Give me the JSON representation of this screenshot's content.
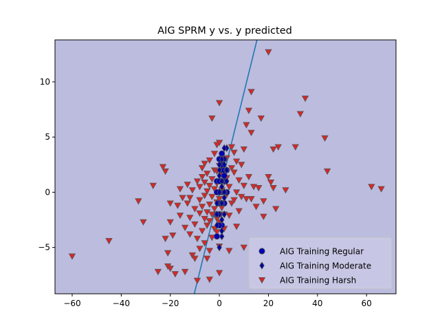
{
  "chart_data": {
    "type": "scatter",
    "title": "AIG SPRM y vs. y predicted",
    "xlabel": "",
    "ylabel": "",
    "xlim": [
      -67,
      72
    ],
    "ylim": [
      -9.2,
      13.8
    ],
    "xticks": [
      -60,
      -40,
      -20,
      0,
      20,
      40,
      60
    ],
    "yticks": [
      -5,
      0,
      5,
      10
    ],
    "grid": false,
    "legend_position": "lower-right",
    "colors": {
      "background": "#bcbcde",
      "line": "#1f77b4",
      "regular": "#0000b4",
      "moderate": "#00009c",
      "harsh": "#d62728",
      "marker_edge": "#555555"
    },
    "reference_line": {
      "slope": 0.9,
      "intercept": 0.0
    },
    "series": [
      {
        "name": "AIG Training Regular",
        "marker": "circle",
        "points": [
          [
            -1,
            -2
          ],
          [
            0,
            -1
          ],
          [
            1,
            0
          ],
          [
            2,
            1
          ],
          [
            1,
            2
          ],
          [
            2,
            3
          ],
          [
            0,
            3
          ],
          [
            1,
            -3
          ],
          [
            -1,
            1
          ],
          [
            2,
            -1
          ],
          [
            3,
            0
          ],
          [
            0,
            0
          ],
          [
            -1,
            -4
          ],
          [
            1,
            1
          ],
          [
            2,
            2
          ],
          [
            0,
            -2
          ],
          [
            1,
            -1
          ],
          [
            3,
            2
          ],
          [
            -1,
            0
          ],
          [
            2,
            0
          ],
          [
            0,
            1
          ],
          [
            1,
            2.5
          ],
          [
            2,
            1.5
          ],
          [
            0,
            -3
          ],
          [
            1,
            3.5
          ]
        ]
      },
      {
        "name": "AIG Training Moderate",
        "marker": "diamond",
        "points": [
          [
            -1,
            -3
          ],
          [
            0,
            -2
          ],
          [
            1,
            -1
          ],
          [
            2,
            0
          ],
          [
            1,
            1
          ],
          [
            3,
            2
          ],
          [
            2,
            3
          ],
          [
            0,
            0
          ],
          [
            1,
            -4
          ],
          [
            2,
            -2
          ],
          [
            -1,
            -1
          ],
          [
            3,
            1
          ],
          [
            0,
            2
          ],
          [
            1,
            0.5
          ],
          [
            2,
            -0.5
          ],
          [
            0,
            -5
          ],
          [
            1,
            3
          ],
          [
            3,
            4
          ],
          [
            -1,
            -2
          ],
          [
            2,
            2.5
          ],
          [
            0,
            1.5
          ],
          [
            1,
            -2.5
          ],
          [
            2,
            4
          ],
          [
            1,
            -3.5
          ],
          [
            0,
            2.5
          ]
        ]
      },
      {
        "name": "AIG Training Harsh",
        "marker": "triangle_down",
        "points": [
          [
            -60,
            -5.8
          ],
          [
            -45,
            -4.4
          ],
          [
            -33,
            -0.8
          ],
          [
            -31,
            -2.7
          ],
          [
            -27,
            0.6
          ],
          [
            -25,
            -7.2
          ],
          [
            -23,
            2.3
          ],
          [
            -22,
            1.9
          ],
          [
            -22,
            -4.2
          ],
          [
            -21,
            -6.7
          ],
          [
            -21,
            -5.5
          ],
          [
            -20,
            -6.9
          ],
          [
            -20,
            -1.0
          ],
          [
            -20,
            -2.7
          ],
          [
            -19,
            -3.9
          ],
          [
            -18,
            -7.4
          ],
          [
            -17,
            -1.2
          ],
          [
            -16,
            -2.1
          ],
          [
            -16,
            0.3
          ],
          [
            -15,
            -0.5
          ],
          [
            -14,
            -7.2
          ],
          [
            -14,
            -3.2
          ],
          [
            -13,
            -1.0
          ],
          [
            -13,
            0.7
          ],
          [
            -12,
            -2.3
          ],
          [
            -12,
            -3.8
          ],
          [
            -12,
            -0.5
          ],
          [
            -11,
            0.2
          ],
          [
            -11,
            -5.7
          ],
          [
            -10,
            -6.0
          ],
          [
            -10,
            -2.9
          ],
          [
            -10,
            -1.5
          ],
          [
            -9,
            -8.0
          ],
          [
            -9,
            -4.2
          ],
          [
            -9,
            1.0
          ],
          [
            -8,
            -5.1
          ],
          [
            -8,
            -1.9
          ],
          [
            -8,
            -0.7
          ],
          [
            -8,
            0.5
          ],
          [
            -7,
            -3.5
          ],
          [
            -7,
            -1.3
          ],
          [
            -7,
            2.2
          ],
          [
            -7,
            1.4
          ],
          [
            -6,
            -4.6
          ],
          [
            -6,
            -2.4
          ],
          [
            -6,
            -0.3
          ],
          [
            -6,
            0.9
          ],
          [
            -6,
            2.6
          ],
          [
            -5,
            -6.0
          ],
          [
            -5,
            -3.0
          ],
          [
            -5,
            -1.8
          ],
          [
            -5,
            0.1
          ],
          [
            -5,
            1.7
          ],
          [
            -4,
            -7.9
          ],
          [
            -4,
            -5.3
          ],
          [
            -4,
            -2.6
          ],
          [
            -4,
            -1.1
          ],
          [
            -4,
            0.6
          ],
          [
            -4,
            2.9
          ],
          [
            -3,
            -4.1
          ],
          [
            -3,
            -2.0
          ],
          [
            -3,
            -0.4
          ],
          [
            -3,
            1.2
          ],
          [
            -3,
            6.7
          ],
          [
            -2,
            -3.3
          ],
          [
            -2,
            -1.5
          ],
          [
            -2,
            0.3
          ],
          [
            -2,
            2.0
          ],
          [
            -2,
            3.5
          ],
          [
            -1,
            -3.6
          ],
          [
            -1,
            -2.4
          ],
          [
            -1,
            -0.9
          ],
          [
            -1,
            0.8
          ],
          [
            -1,
            1.9
          ],
          [
            -1,
            4.3
          ],
          [
            0,
            8.1
          ],
          [
            0,
            -7.3
          ],
          [
            0,
            -4.9
          ],
          [
            0,
            -2.7
          ],
          [
            0,
            -0.6
          ],
          [
            0,
            2.4
          ],
          [
            0,
            4.5
          ],
          [
            1,
            -1.4
          ],
          [
            1,
            0.2
          ],
          [
            1,
            1.6
          ],
          [
            2,
            -2.0
          ],
          [
            2,
            0.9
          ],
          [
            2,
            -3.3
          ],
          [
            3,
            -0.2
          ],
          [
            3,
            1.3
          ],
          [
            3,
            3.1
          ],
          [
            4,
            -2.1
          ],
          [
            4,
            -5.3
          ],
          [
            4,
            0.5
          ],
          [
            5,
            2.2
          ],
          [
            5,
            -1.0
          ],
          [
            5,
            4.1
          ],
          [
            6,
            -0.7
          ],
          [
            6,
            1.8
          ],
          [
            6,
            3.6
          ],
          [
            7,
            -3.1
          ],
          [
            7,
            0.0
          ],
          [
            7,
            2.8
          ],
          [
            8,
            -1.7
          ],
          [
            8,
            1.1
          ],
          [
            9,
            -0.4
          ],
          [
            9,
            2.5
          ],
          [
            10,
            -5.0
          ],
          [
            10,
            0.6
          ],
          [
            10,
            3.9
          ],
          [
            11,
            -0.6
          ],
          [
            11,
            6.1
          ],
          [
            12,
            1.4
          ],
          [
            12,
            7.4
          ],
          [
            13,
            -0.6
          ],
          [
            13,
            5.4
          ],
          [
            13,
            9.1
          ],
          [
            14,
            0.5
          ],
          [
            15,
            -1.3
          ],
          [
            16,
            0.4
          ],
          [
            17,
            6.7
          ],
          [
            18,
            -2.2
          ],
          [
            18,
            -0.8
          ],
          [
            20,
            12.7
          ],
          [
            20,
            1.4
          ],
          [
            21,
            0.9
          ],
          [
            22,
            0.4
          ],
          [
            22,
            3.9
          ],
          [
            23,
            -1.5
          ],
          [
            24,
            4.1
          ],
          [
            27,
            0.2
          ],
          [
            31,
            4.1
          ],
          [
            33,
            7.1
          ],
          [
            35,
            8.5
          ],
          [
            43,
            4.9
          ],
          [
            44,
            1.9
          ],
          [
            62,
            0.5
          ],
          [
            66,
            0.3
          ]
        ]
      }
    ]
  }
}
